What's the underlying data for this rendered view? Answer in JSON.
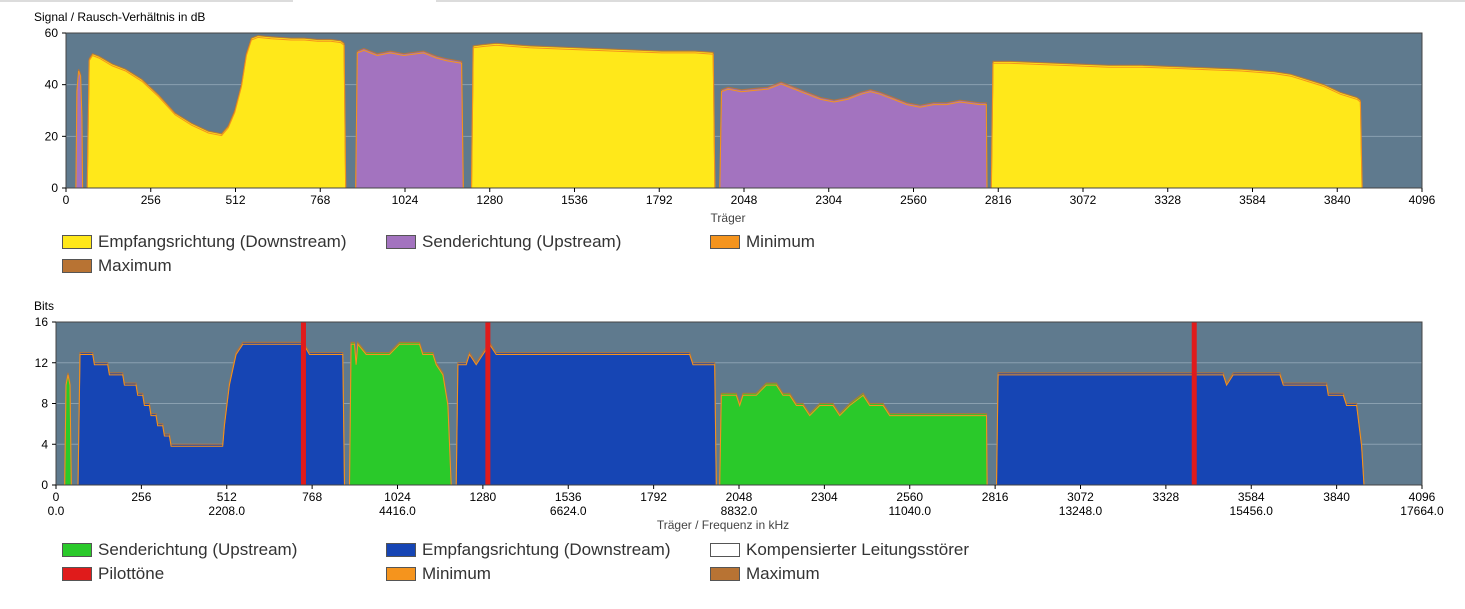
{
  "colors": {
    "plot_bg": "#5f7a8e",
    "downstream_yellow": "#ffe81a",
    "upstream_purple": "#a373bf",
    "minimum_orange": "#f5941d",
    "maximum_brown": "#b87333",
    "upstream_green": "#2ac92a",
    "downstream_blue": "#1645b4",
    "pilot_red": "#e01b1b",
    "compensated_white": "#ffffff"
  },
  "chart_data": [
    {
      "type": "area",
      "title": "Signal / Rausch-Verhältnis in dB",
      "xlabel": "Träger",
      "ylabel": "",
      "xlim": [
        0,
        4096
      ],
      "ylim": [
        0,
        60
      ],
      "x_ticks": [
        "0",
        "256",
        "512",
        "768",
        "1024",
        "1280",
        "1536",
        "1792",
        "2048",
        "2304",
        "2560",
        "2816",
        "3072",
        "3328",
        "3584",
        "3840",
        "4096"
      ],
      "y_ticks": [
        "0",
        "20",
        "40",
        "60"
      ],
      "legend_position": "bottom",
      "legend": [
        {
          "label": "Empfangsrichtung (Downstream)",
          "color": "#ffe81a"
        },
        {
          "label": "Senderichtung (Upstream)",
          "color": "#a373bf"
        },
        {
          "label": "Minimum",
          "color": "#f5941d"
        },
        {
          "label": "Maximum",
          "color": "#b87333"
        }
      ],
      "series": [
        {
          "role": "upstream",
          "color": "#a373bf",
          "points": [
            [
              30,
              0
            ],
            [
              33,
              38
            ],
            [
              38,
              46
            ],
            [
              44,
              44
            ],
            [
              48,
              28
            ],
            [
              50,
              0
            ]
          ]
        },
        {
          "role": "downstream",
          "color": "#ffe81a",
          "points": [
            [
              64,
              0
            ],
            [
              70,
              50
            ],
            [
              80,
              52
            ],
            [
              100,
              51
            ],
            [
              140,
              48
            ],
            [
              180,
              46
            ],
            [
              230,
              42
            ],
            [
              280,
              36
            ],
            [
              330,
              29
            ],
            [
              380,
              25
            ],
            [
              430,
              22
            ],
            [
              470,
              21
            ],
            [
              490,
              24
            ],
            [
              510,
              30
            ],
            [
              530,
              40
            ],
            [
              545,
              52
            ],
            [
              560,
              58
            ],
            [
              580,
              59
            ],
            [
              620,
              58.5
            ],
            [
              680,
              58
            ],
            [
              720,
              58
            ],
            [
              760,
              57.5
            ],
            [
              800,
              57.5
            ],
            [
              830,
              57
            ],
            [
              840,
              56
            ],
            [
              845,
              0
            ]
          ]
        },
        {
          "role": "upstream",
          "color": "#a373bf",
          "points": [
            [
              875,
              0
            ],
            [
              880,
              53
            ],
            [
              900,
              54
            ],
            [
              940,
              52
            ],
            [
              980,
              53
            ],
            [
              1020,
              52
            ],
            [
              1080,
              53
            ],
            [
              1120,
              51
            ],
            [
              1150,
              50
            ],
            [
              1195,
              49
            ],
            [
              1200,
              0
            ]
          ]
        },
        {
          "role": "downstream",
          "color": "#ffe81a",
          "points": [
            [
              1225,
              0
            ],
            [
              1230,
              55
            ],
            [
              1260,
              55.5
            ],
            [
              1300,
              56
            ],
            [
              1400,
              55
            ],
            [
              1500,
              54.5
            ],
            [
              1600,
              54
            ],
            [
              1700,
              53.5
            ],
            [
              1800,
              53
            ],
            [
              1900,
              53
            ],
            [
              1955,
              52.5
            ],
            [
              1960,
              0
            ]
          ]
        },
        {
          "role": "upstream",
          "color": "#a373bf",
          "points": [
            [
              1975,
              0
            ],
            [
              1980,
              38
            ],
            [
              2000,
              39
            ],
            [
              2040,
              38
            ],
            [
              2080,
              38.5
            ],
            [
              2120,
              39
            ],
            [
              2160,
              41
            ],
            [
              2200,
              39
            ],
            [
              2240,
              37
            ],
            [
              2280,
              35
            ],
            [
              2320,
              34
            ],
            [
              2360,
              35
            ],
            [
              2400,
              37
            ],
            [
              2430,
              38
            ],
            [
              2460,
              37
            ],
            [
              2500,
              35
            ],
            [
              2540,
              33
            ],
            [
              2580,
              32
            ],
            [
              2620,
              33
            ],
            [
              2660,
              33
            ],
            [
              2700,
              34
            ],
            [
              2760,
              33
            ],
            [
              2780,
              33
            ],
            [
              2782,
              0
            ]
          ]
        },
        {
          "role": "downstream",
          "color": "#ffe81a",
          "points": [
            [
              2795,
              0
            ],
            [
              2800,
              49
            ],
            [
              2850,
              49
            ],
            [
              2950,
              48.5
            ],
            [
              3050,
              48
            ],
            [
              3150,
              47.5
            ],
            [
              3250,
              47.5
            ],
            [
              3350,
              47
            ],
            [
              3450,
              46.5
            ],
            [
              3550,
              46
            ],
            [
              3650,
              45
            ],
            [
              3700,
              44
            ],
            [
              3750,
              42
            ],
            [
              3800,
              40
            ],
            [
              3850,
              37
            ],
            [
              3900,
              35
            ],
            [
              3910,
              34
            ],
            [
              3915,
              0
            ]
          ]
        }
      ]
    },
    {
      "type": "area",
      "title": "Bits",
      "xlabel": "Träger / Frequenz in kHz",
      "ylabel": "",
      "xlim": [
        0,
        4096
      ],
      "ylim": [
        0,
        16
      ],
      "x_ticks": [
        "0",
        "256",
        "512",
        "768",
        "1024",
        "1280",
        "1536",
        "1792",
        "2048",
        "2304",
        "2560",
        "2816",
        "3072",
        "3328",
        "3584",
        "3840",
        "4096"
      ],
      "x_ticks_secondary": [
        "0.0",
        "2208.0",
        "4416.0",
        "6624.0",
        "8832.0",
        "11040.0",
        "13248.0",
        "15456.0",
        "17664.0"
      ],
      "y_ticks": [
        "0",
        "4",
        "8",
        "12",
        "16"
      ],
      "legend_position": "bottom",
      "legend": [
        {
          "label": "Senderichtung (Upstream)",
          "color": "#2ac92a"
        },
        {
          "label": "Empfangsrichtung (Downstream)",
          "color": "#1645b4"
        },
        {
          "label": "Kompensierter Leitungsstörer",
          "color": "#ffffff"
        },
        {
          "label": "Pilottöne",
          "color": "#e01b1b"
        },
        {
          "label": "Minimum",
          "color": "#f5941d"
        },
        {
          "label": "Maximum",
          "color": "#b87333"
        }
      ],
      "pilot_tones": [
        742,
        1295,
        3413
      ],
      "series": [
        {
          "role": "upstream",
          "color": "#2ac92a",
          "points": [
            [
              26,
              0
            ],
            [
              30,
              10
            ],
            [
              36,
              11
            ],
            [
              42,
              10
            ],
            [
              46,
              0
            ]
          ]
        },
        {
          "role": "downstream",
          "color": "#1645b4",
          "points": [
            [
              66,
              0
            ],
            [
              72,
              13
            ],
            [
              110,
              13
            ],
            [
              115,
              12
            ],
            [
              155,
              12
            ],
            [
              160,
              11
            ],
            [
              200,
              11
            ],
            [
              205,
              10
            ],
            [
              240,
              10
            ],
            [
              245,
              9
            ],
            [
              260,
              9
            ],
            [
              265,
              8
            ],
            [
              280,
              8
            ],
            [
              285,
              7
            ],
            [
              300,
              7
            ],
            [
              305,
              6
            ],
            [
              320,
              6
            ],
            [
              325,
              5
            ],
            [
              340,
              5
            ],
            [
              345,
              4
            ],
            [
              500,
              4
            ],
            [
              505,
              6
            ],
            [
              520,
              10
            ],
            [
              540,
              13
            ],
            [
              560,
              14
            ],
            [
              700,
              14
            ],
            [
              742,
              14
            ],
            [
              760,
              13
            ],
            [
              860,
              13
            ],
            [
              865,
              0
            ]
          ]
        },
        {
          "role": "upstream",
          "color": "#2ac92a",
          "points": [
            [
              880,
              0
            ],
            [
              885,
              14
            ],
            [
              895,
              14
            ],
            [
              900,
              12
            ],
            [
              905,
              14
            ],
            [
              930,
              13
            ],
            [
              1000,
              13
            ],
            [
              1030,
              14
            ],
            [
              1090,
              14
            ],
            [
              1100,
              13
            ],
            [
              1130,
              13
            ],
            [
              1140,
              12
            ],
            [
              1160,
              11
            ],
            [
              1175,
              8
            ],
            [
              1185,
              0
            ]
          ]
        },
        {
          "role": "downstream",
          "color": "#1645b4",
          "points": [
            [
              1200,
              0
            ],
            [
              1205,
              12
            ],
            [
              1230,
              12
            ],
            [
              1240,
              13
            ],
            [
              1260,
              12
            ],
            [
              1280,
              13
            ],
            [
              1300,
              14
            ],
            [
              1320,
              13
            ],
            [
              1900,
              13
            ],
            [
              1910,
              12
            ],
            [
              1975,
              12
            ],
            [
              1980,
              0
            ]
          ]
        },
        {
          "role": "upstream",
          "color": "#2ac92a",
          "points": [
            [
              1990,
              0
            ],
            [
              1995,
              9
            ],
            [
              2040,
              9
            ],
            [
              2050,
              8
            ],
            [
              2060,
              9
            ],
            [
              2100,
              9
            ],
            [
              2130,
              10
            ],
            [
              2160,
              10
            ],
            [
              2180,
              9
            ],
            [
              2200,
              9
            ],
            [
              2220,
              8
            ],
            [
              2240,
              8
            ],
            [
              2260,
              7
            ],
            [
              2290,
              8
            ],
            [
              2330,
              8
            ],
            [
              2350,
              7
            ],
            [
              2380,
              8
            ],
            [
              2420,
              9
            ],
            [
              2440,
              8
            ],
            [
              2480,
              8
            ],
            [
              2500,
              7
            ],
            [
              2790,
              7
            ],
            [
              2792,
              0
            ]
          ]
        },
        {
          "role": "downstream",
          "color": "#1645b4",
          "points": [
            [
              2820,
              0
            ],
            [
              2825,
              11
            ],
            [
              3500,
              11
            ],
            [
              3510,
              10
            ],
            [
              3530,
              11
            ],
            [
              3670,
              11
            ],
            [
              3680,
              10
            ],
            [
              3810,
              10
            ],
            [
              3815,
              9
            ],
            [
              3860,
              9
            ],
            [
              3870,
              8
            ],
            [
              3900,
              8
            ],
            [
              3915,
              4
            ],
            [
              3922,
              0
            ]
          ]
        }
      ]
    }
  ]
}
